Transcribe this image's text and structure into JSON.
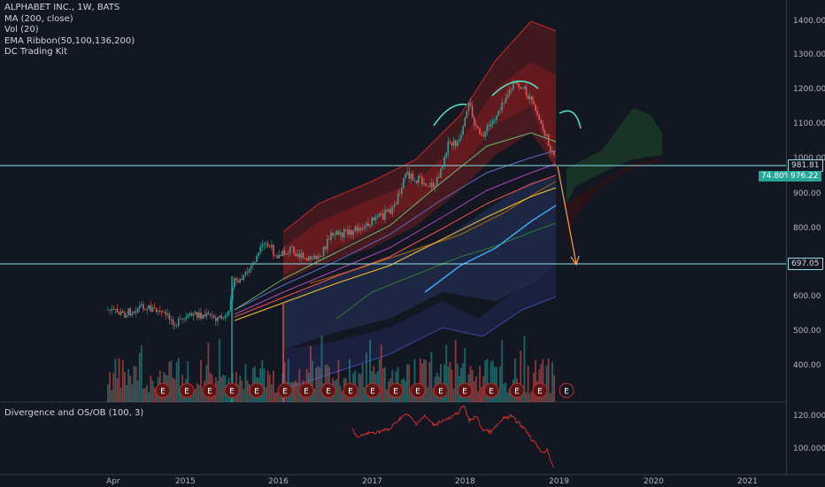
{
  "legend": {
    "symbol": "ALPHABET INC., 1W, BATS",
    "indicators": [
      "MA (200, close)",
      "Vol (20)",
      "EMA Ribbon(50,100,136,200)",
      "DC Trading Kit"
    ]
  },
  "sub_legend": "Divergence and OS/OB (100, 3)",
  "price_axis": {
    "ticks": [
      "1400.00",
      "1300.00",
      "1200.00",
      "1100.00",
      "1000.00",
      "900.00",
      "800.00",
      "700.00",
      "600.00",
      "500.00",
      "400.00"
    ],
    "sub_ticks": [
      "120.0000",
      "100.0000"
    ]
  },
  "time_axis": {
    "ticks": [
      "Apr",
      "2015",
      "2016",
      "2017",
      "2018",
      "2019",
      "2020",
      "2021"
    ]
  },
  "price_tags": {
    "upper_line": "981.81",
    "current_pct": "74.80%",
    "current_price": "976.22",
    "lower_line": "697.05"
  },
  "earnings_marker": "E",
  "colors": {
    "background": "#131722",
    "up": "#26a69a",
    "down": "#ef5350",
    "hline": "#8ee0e8",
    "arrow": "#f7a35c",
    "divergence": "#d32f2f"
  }
}
